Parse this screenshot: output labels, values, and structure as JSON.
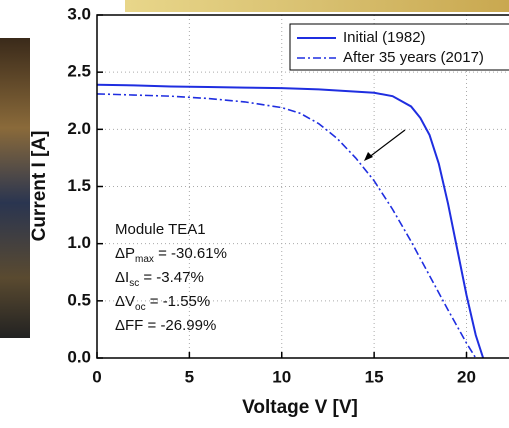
{
  "chart_data": {
    "type": "line",
    "x_label": "Voltage V [V]",
    "y_label": "Current I [A]",
    "xlim": [
      0,
      22.3
    ],
    "ylim": [
      0,
      3.0
    ],
    "xticks": [
      0,
      5,
      10,
      15,
      20
    ],
    "yticks": [
      {
        "value": 0,
        "label": "0.0"
      },
      0.5,
      {
        "value": 1,
        "label": "1.0"
      },
      1.5,
      {
        "value": 2,
        "label": "2.0"
      },
      2.5,
      {
        "value": 3,
        "label": "3.0"
      }
    ],
    "grid": true,
    "legend": "upper right",
    "series": [
      {
        "name": "Initial (1982)",
        "color": "#1f2ee0",
        "style": "solid",
        "x": [
          0,
          2,
          4,
          6,
          8,
          10,
          12,
          14,
          15,
          16,
          17,
          17.5,
          18,
          18.5,
          19,
          19.5,
          20,
          20.5,
          20.9
        ],
        "values": [
          2.39,
          2.385,
          2.375,
          2.37,
          2.365,
          2.36,
          2.35,
          2.33,
          2.32,
          2.29,
          2.2,
          2.1,
          1.95,
          1.7,
          1.35,
          0.95,
          0.55,
          0.2,
          0
        ]
      },
      {
        "name": "After 35 years (2017)",
        "color": "#1f2ee0",
        "style": "dashdot",
        "x": [
          0,
          2,
          4,
          6,
          8,
          10,
          11,
          12,
          13,
          14,
          15,
          16,
          17,
          18,
          19,
          20,
          20.5
        ],
        "values": [
          2.31,
          2.3,
          2.29,
          2.27,
          2.24,
          2.19,
          2.14,
          2.05,
          1.92,
          1.75,
          1.55,
          1.3,
          1.02,
          0.72,
          0.42,
          0.13,
          0
        ]
      }
    ],
    "annotations": [
      {
        "main": "Module TEA1"
      },
      {
        "main": "ΔP",
        "sub": "max",
        "rest": " = -30.61%"
      },
      {
        "main": "ΔI",
        "sub": "sc",
        "rest": " = -3.47%"
      },
      {
        "main": "ΔV",
        "sub": "oc",
        "rest": " = -1.55%"
      },
      {
        "main": "ΔFF = -26.99%"
      }
    ]
  }
}
